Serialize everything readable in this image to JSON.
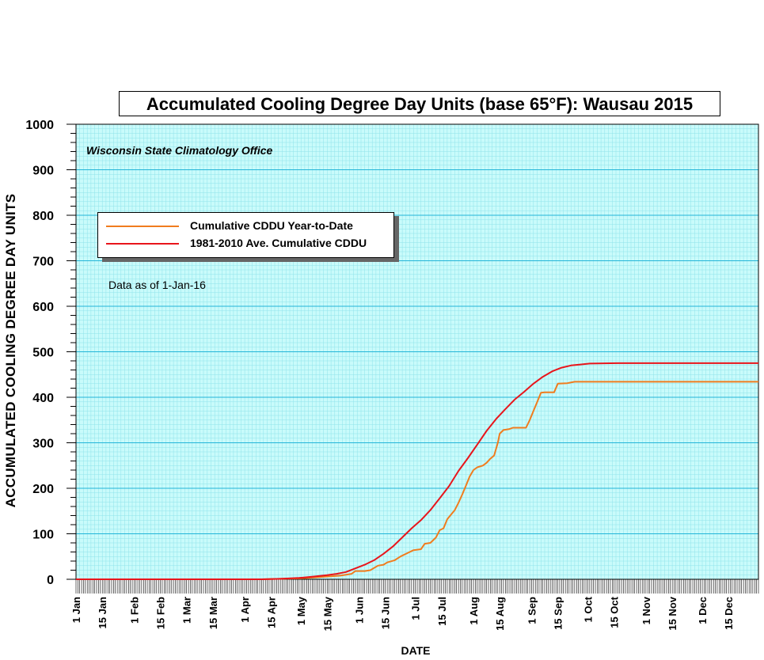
{
  "chart_data": {
    "type": "line",
    "title": "Accumulated Cooling Degree Day Units (base 65°F): Wausau 2015",
    "source_note": "Wisconsin State Climatology Office",
    "as_of_note": "Data as of 1-Jan-16",
    "xlabel": "DATE",
    "ylabel": "ACCUMULATED COOLING DEGREE DAY UNITS",
    "ylim": [
      0,
      1000
    ],
    "y_ticks": [
      0,
      100,
      200,
      300,
      400,
      500,
      600,
      700,
      800,
      900,
      1000
    ],
    "xlim_day_of_year": [
      1,
      365
    ],
    "x_ticks": [
      {
        "label": "1 Jan",
        "day": 1
      },
      {
        "label": "15 Jan",
        "day": 15
      },
      {
        "label": "1 Feb",
        "day": 32
      },
      {
        "label": "15 Feb",
        "day": 46
      },
      {
        "label": "1 Mar",
        "day": 60
      },
      {
        "label": "15 Mar",
        "day": 74
      },
      {
        "label": "1 Apr",
        "day": 91
      },
      {
        "label": "15 Apr",
        "day": 105
      },
      {
        "label": "1 May",
        "day": 121
      },
      {
        "label": "15 May",
        "day": 135
      },
      {
        "label": "1 Jun",
        "day": 152
      },
      {
        "label": "15 Jun",
        "day": 166
      },
      {
        "label": "1 Jul",
        "day": 182
      },
      {
        "label": "15 Jul",
        "day": 196
      },
      {
        "label": "1 Aug",
        "day": 213
      },
      {
        "label": "15 Aug",
        "day": 227
      },
      {
        "label": "1 Sep",
        "day": 244
      },
      {
        "label": "15 Sep",
        "day": 258
      },
      {
        "label": "1 Oct",
        "day": 274
      },
      {
        "label": "15 Oct",
        "day": 288
      },
      {
        "label": "1 Nov",
        "day": 305
      },
      {
        "label": "15 Nov",
        "day": 319
      },
      {
        "label": "1 Dec",
        "day": 335
      },
      {
        "label": "15 Dec",
        "day": 349
      }
    ],
    "grid": true,
    "legend_position": "upper-left",
    "series": [
      {
        "name": "Cumulative CDDU Year-to-Date",
        "color": "#f07c1e",
        "points": [
          [
            1,
            0
          ],
          [
            100,
            0
          ],
          [
            110,
            1
          ],
          [
            120,
            2
          ],
          [
            128,
            4
          ],
          [
            135,
            6
          ],
          [
            142,
            8
          ],
          [
            148,
            12
          ],
          [
            150,
            18
          ],
          [
            155,
            18
          ],
          [
            158,
            20
          ],
          [
            162,
            30
          ],
          [
            165,
            32
          ],
          [
            167,
            37
          ],
          [
            171,
            42
          ],
          [
            174,
            50
          ],
          [
            178,
            58
          ],
          [
            181,
            64
          ],
          [
            185,
            66
          ],
          [
            187,
            78
          ],
          [
            190,
            80
          ],
          [
            193,
            92
          ],
          [
            195,
            108
          ],
          [
            197,
            112
          ],
          [
            199,
            132
          ],
          [
            201,
            142
          ],
          [
            203,
            152
          ],
          [
            205,
            168
          ],
          [
            207,
            186
          ],
          [
            209,
            206
          ],
          [
            211,
            226
          ],
          [
            213,
            240
          ],
          [
            215,
            246
          ],
          [
            218,
            250
          ],
          [
            220,
            256
          ],
          [
            222,
            265
          ],
          [
            224,
            272
          ],
          [
            226,
            300
          ],
          [
            227,
            320
          ],
          [
            229,
            328
          ],
          [
            232,
            330
          ],
          [
            234,
            333
          ],
          [
            241,
            333
          ],
          [
            243,
            350
          ],
          [
            245,
            370
          ],
          [
            247,
            390
          ],
          [
            249,
            410
          ],
          [
            251,
            411
          ],
          [
            256,
            411
          ],
          [
            258,
            430
          ],
          [
            263,
            431
          ],
          [
            267,
            434
          ],
          [
            365,
            434
          ]
        ]
      },
      {
        "name": "1981-2010 Ave. Cumulative CDDU",
        "color": "#e8151b",
        "points": [
          [
            1,
            0
          ],
          [
            100,
            0
          ],
          [
            110,
            1
          ],
          [
            120,
            3
          ],
          [
            128,
            6
          ],
          [
            135,
            9
          ],
          [
            140,
            12
          ],
          [
            145,
            16
          ],
          [
            150,
            24
          ],
          [
            155,
            32
          ],
          [
            160,
            42
          ],
          [
            165,
            56
          ],
          [
            170,
            72
          ],
          [
            175,
            92
          ],
          [
            180,
            112
          ],
          [
            185,
            130
          ],
          [
            190,
            152
          ],
          [
            195,
            178
          ],
          [
            200,
            205
          ],
          [
            205,
            238
          ],
          [
            210,
            266
          ],
          [
            215,
            296
          ],
          [
            220,
            326
          ],
          [
            225,
            352
          ],
          [
            230,
            374
          ],
          [
            235,
            395
          ],
          [
            240,
            412
          ],
          [
            245,
            430
          ],
          [
            250,
            445
          ],
          [
            255,
            457
          ],
          [
            260,
            465
          ],
          [
            265,
            470
          ],
          [
            270,
            472
          ],
          [
            275,
            474
          ],
          [
            290,
            475
          ],
          [
            365,
            475
          ]
        ]
      }
    ]
  }
}
